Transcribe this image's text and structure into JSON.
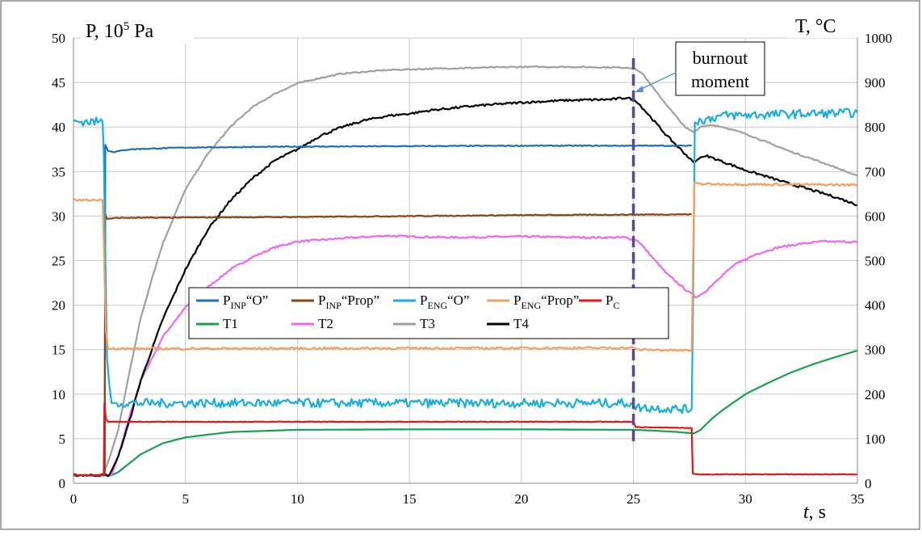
{
  "chart_data": {
    "type": "line",
    "y_left_label": "P, 10",
    "y_left_label_sup": "5",
    "y_left_label_unit": " Pa",
    "y_right_label": "T, °C",
    "x_label": "t",
    "x_label_unit": ", s",
    "xlim": [
      0,
      35
    ],
    "ylim_left": [
      0,
      50
    ],
    "ylim_right": [
      0,
      1000
    ],
    "x_ticks": [
      "0",
      "5",
      "10",
      "15",
      "20",
      "25",
      "30",
      "35"
    ],
    "y_left_ticks": [
      "0",
      "5",
      "10",
      "15",
      "20",
      "25",
      "30",
      "35",
      "40",
      "45",
      "50"
    ],
    "y_right_ticks": [
      "0",
      "100",
      "200",
      "300",
      "400",
      "500",
      "600",
      "700",
      "800",
      "900",
      "1000"
    ],
    "grid": true,
    "legend_position": "center-left",
    "annotation": {
      "line1": "burnout",
      "line2": "moment",
      "x": 25
    },
    "series": [
      {
        "name": "PINP“O”",
        "label_main": "P",
        "label_sub": "INP",
        "label_tail": "“O”",
        "axis": "left",
        "color": "#1F6FB5",
        "noise": 0.05,
        "points": [
          [
            0,
            0.9
          ],
          [
            1.39,
            0.9
          ],
          [
            1.42,
            38
          ],
          [
            1.55,
            37.3
          ],
          [
            1.8,
            37.2
          ],
          [
            2.5,
            37.5
          ],
          [
            5,
            37.7
          ],
          [
            10,
            37.8
          ],
          [
            20,
            37.9
          ],
          [
            27.6,
            37.9
          ]
        ]
      },
      {
        "name": "PINP“Prop”",
        "label_main": "P",
        "label_sub": "INP",
        "label_tail": "“Prop”",
        "axis": "left",
        "color": "#8B4513",
        "noise": 0.05,
        "points": [
          [
            0,
            0.9
          ],
          [
            1.39,
            0.9
          ],
          [
            1.42,
            30.2
          ],
          [
            1.5,
            29.7
          ],
          [
            2,
            29.8
          ],
          [
            10,
            29.9
          ],
          [
            20,
            30.1
          ],
          [
            27.6,
            30.2
          ]
        ]
      },
      {
        "name": "PENG“O”",
        "label_main": "P",
        "label_sub": "ENG",
        "label_tail": "“O”",
        "axis": "left",
        "color": "#1AADE0",
        "noise": 0.5,
        "points": [
          [
            0,
            40.6
          ],
          [
            1.3,
            40.6
          ],
          [
            1.35,
            37
          ],
          [
            1.5,
            14
          ],
          [
            1.6,
            11
          ],
          [
            1.7,
            9
          ],
          [
            2,
            9
          ],
          [
            24.9,
            9
          ],
          [
            25.1,
            8.5
          ],
          [
            27.6,
            8.3
          ],
          [
            27.66,
            20
          ],
          [
            27.74,
            40.6
          ],
          [
            29,
            41.3
          ],
          [
            35,
            41.6
          ]
        ]
      },
      {
        "name": "PENG“Prop”",
        "label_main": "P",
        "label_sub": "ENG",
        "label_tail": "“Prop”",
        "axis": "left",
        "color": "#F0A060",
        "noise": 0.12,
        "points": [
          [
            0,
            31.8
          ],
          [
            1.3,
            31.8
          ],
          [
            1.35,
            27
          ],
          [
            1.45,
            17
          ],
          [
            1.55,
            15.2
          ],
          [
            2,
            15.1
          ],
          [
            25,
            15.2
          ],
          [
            25.2,
            15
          ],
          [
            27.6,
            14.9
          ],
          [
            27.66,
            25
          ],
          [
            27.72,
            33.8
          ],
          [
            28,
            33.6
          ],
          [
            35,
            33.5
          ]
        ]
      },
      {
        "name": "PC",
        "label_main": "P",
        "label_sub": "C",
        "label_tail": "",
        "axis": "left",
        "color": "#E01818",
        "noise": 0.03,
        "points": [
          [
            0,
            0.9
          ],
          [
            1.35,
            0.9
          ],
          [
            1.38,
            9
          ],
          [
            1.45,
            7.2
          ],
          [
            1.55,
            6.9
          ],
          [
            2,
            6.9
          ],
          [
            25,
            6.9
          ],
          [
            25.1,
            6.3
          ],
          [
            27.6,
            6.2
          ],
          [
            27.65,
            1.1
          ],
          [
            27.8,
            1
          ],
          [
            35,
            1
          ]
        ]
      },
      {
        "name": "T1",
        "label_main": "T1",
        "label_sub": "",
        "label_tail": "",
        "axis": "right",
        "color": "#18A050",
        "noise": 0,
        "points": [
          [
            0,
            18
          ],
          [
            1.7,
            18
          ],
          [
            2,
            25
          ],
          [
            2.5,
            45
          ],
          [
            3,
            65
          ],
          [
            4,
            90
          ],
          [
            5,
            103
          ],
          [
            7,
            115
          ],
          [
            10,
            120
          ],
          [
            15,
            121
          ],
          [
            20,
            121
          ],
          [
            25,
            120
          ],
          [
            26,
            118
          ],
          [
            27,
            115
          ],
          [
            27.7,
            112
          ],
          [
            28,
            120
          ],
          [
            28.5,
            145
          ],
          [
            29,
            165
          ],
          [
            30,
            200
          ],
          [
            31,
            225
          ],
          [
            32,
            248
          ],
          [
            33,
            267
          ],
          [
            34,
            283
          ],
          [
            35,
            298
          ]
        ]
      },
      {
        "name": "T2",
        "label_main": "T2",
        "label_sub": "",
        "label_tail": "",
        "axis": "right",
        "color": "#EE66EE",
        "noise": 2,
        "points": [
          [
            0,
            18
          ],
          [
            1.7,
            18
          ],
          [
            2,
            60
          ],
          [
            2.5,
            150
          ],
          [
            3,
            230
          ],
          [
            4,
            330
          ],
          [
            5,
            395
          ],
          [
            6,
            440
          ],
          [
            7,
            480
          ],
          [
            8,
            508
          ],
          [
            9,
            530
          ],
          [
            10,
            543
          ],
          [
            12,
            550
          ],
          [
            14,
            556
          ],
          [
            15,
            554
          ],
          [
            17,
            552
          ],
          [
            20,
            554
          ],
          [
            23,
            552
          ],
          [
            24.6,
            552
          ],
          [
            25.2,
            545
          ],
          [
            25.8,
            510
          ],
          [
            26.5,
            470
          ],
          [
            27.2,
            440
          ],
          [
            27.8,
            417
          ],
          [
            28.2,
            430
          ],
          [
            28.8,
            460
          ],
          [
            29.5,
            490
          ],
          [
            30.5,
            515
          ],
          [
            31.5,
            530
          ],
          [
            32.5,
            538
          ],
          [
            33.5,
            543
          ],
          [
            35,
            542
          ]
        ]
      },
      {
        "name": "T3",
        "label_main": "T3",
        "label_sub": "",
        "label_tail": "",
        "axis": "right",
        "color": "#A0A0A0",
        "noise": 1.5,
        "points": [
          [
            0,
            18
          ],
          [
            1.3,
            18
          ],
          [
            1.6,
            55
          ],
          [
            2,
            120
          ],
          [
            2.5,
            250
          ],
          [
            3,
            370
          ],
          [
            3.5,
            460
          ],
          [
            4,
            540
          ],
          [
            5,
            660
          ],
          [
            6,
            740
          ],
          [
            7,
            800
          ],
          [
            8,
            845
          ],
          [
            9,
            875
          ],
          [
            10,
            898
          ],
          [
            11,
            910
          ],
          [
            12,
            920
          ],
          [
            14,
            928
          ],
          [
            16,
            931
          ],
          [
            18,
            933
          ],
          [
            20,
            935
          ],
          [
            22,
            935
          ],
          [
            24,
            934
          ],
          [
            25,
            933
          ],
          [
            25.4,
            920
          ],
          [
            26,
            880
          ],
          [
            26.8,
            830
          ],
          [
            27.3,
            800
          ],
          [
            27.7,
            788
          ],
          [
            28,
            800
          ],
          [
            28.5,
            805
          ],
          [
            29,
            800
          ],
          [
            30,
            785
          ],
          [
            31,
            765
          ],
          [
            32,
            745
          ],
          [
            33,
            728
          ],
          [
            34,
            710
          ],
          [
            35,
            690
          ]
        ]
      },
      {
        "name": "T4",
        "label_main": "T4",
        "label_sub": "",
        "label_tail": "",
        "axis": "right",
        "color": "#000000",
        "noise": 2.5,
        "points": [
          [
            0,
            18
          ],
          [
            1.6,
            18
          ],
          [
            2,
            60
          ],
          [
            2.5,
            140
          ],
          [
            3,
            230
          ],
          [
            4,
            370
          ],
          [
            5,
            480
          ],
          [
            6,
            570
          ],
          [
            7,
            635
          ],
          [
            8,
            685
          ],
          [
            9,
            725
          ],
          [
            10,
            750
          ],
          [
            11,
            780
          ],
          [
            12,
            800
          ],
          [
            13,
            815
          ],
          [
            14,
            825
          ],
          [
            15,
            830
          ],
          [
            16,
            838
          ],
          [
            18,
            848
          ],
          [
            20,
            855
          ],
          [
            22,
            860
          ],
          [
            24,
            862
          ],
          [
            24.7,
            866
          ],
          [
            25.1,
            860
          ],
          [
            25.6,
            832
          ],
          [
            26.5,
            780
          ],
          [
            27.2,
            745
          ],
          [
            27.7,
            720
          ],
          [
            28,
            732
          ],
          [
            28.3,
            735
          ],
          [
            29,
            722
          ],
          [
            30,
            703
          ],
          [
            31,
            688
          ],
          [
            32,
            672
          ],
          [
            33,
            658
          ],
          [
            34,
            643
          ],
          [
            35,
            625
          ]
        ]
      }
    ]
  }
}
